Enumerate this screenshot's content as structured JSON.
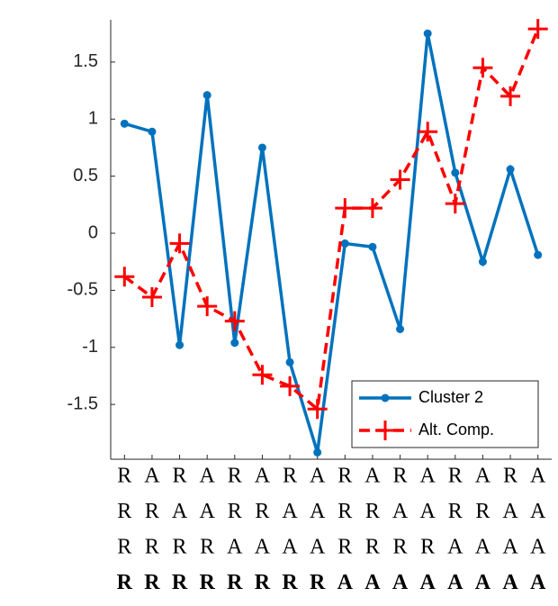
{
  "chart_data": {
    "type": "line",
    "categories": [
      [
        "R",
        "R",
        "R",
        "R"
      ],
      [
        "A",
        "R",
        "R",
        "R"
      ],
      [
        "R",
        "A",
        "R",
        "R"
      ],
      [
        "A",
        "A",
        "R",
        "R"
      ],
      [
        "R",
        "R",
        "A",
        "R"
      ],
      [
        "A",
        "R",
        "A",
        "R"
      ],
      [
        "R",
        "A",
        "A",
        "R"
      ],
      [
        "A",
        "A",
        "A",
        "R"
      ],
      [
        "R",
        "R",
        "R",
        "A"
      ],
      [
        "A",
        "R",
        "R",
        "A"
      ],
      [
        "R",
        "A",
        "R",
        "A"
      ],
      [
        "A",
        "A",
        "R",
        "A"
      ],
      [
        "R",
        "R",
        "A",
        "A"
      ],
      [
        "A",
        "R",
        "A",
        "A"
      ],
      [
        "R",
        "A",
        "A",
        "A"
      ],
      [
        "A",
        "A",
        "A",
        "A"
      ]
    ],
    "series": [
      {
        "name": "Cluster 2",
        "color": "#0072bd",
        "marker": "circle",
        "dash": false,
        "values": [
          0.96,
          0.89,
          -0.98,
          1.21,
          -0.96,
          0.75,
          -1.13,
          -1.92,
          -0.09,
          -0.12,
          -0.84,
          1.75,
          0.53,
          -0.25,
          0.56,
          -0.19
        ]
      },
      {
        "name": "Alt. Comp.",
        "color": "#ff0000",
        "marker": "plus",
        "dash": true,
        "values": [
          -0.38,
          -0.56,
          -0.09,
          -0.64,
          -0.77,
          -1.24,
          -1.34,
          -1.54,
          0.22,
          0.22,
          0.47,
          0.89,
          0.26,
          1.45,
          1.2,
          1.79
        ]
      }
    ],
    "ylim": [
      -1.98,
      1.87
    ],
    "yticks": [
      -1.5,
      -1,
      -0.5,
      0,
      0.5,
      1,
      1.5
    ],
    "legend": "lower right"
  }
}
